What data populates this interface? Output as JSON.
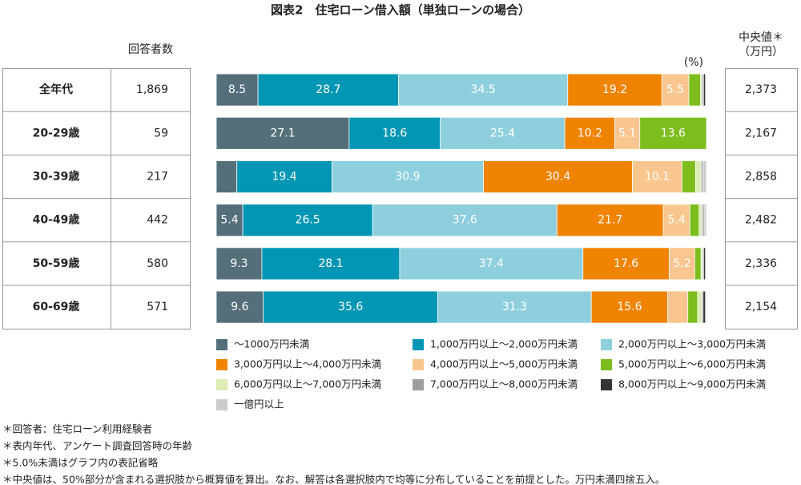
{
  "chart_data": {
    "type": "bar",
    "orientation": "horizontal",
    "stacked": true,
    "title": "図表2　住宅ローン借入額（単独ローンの場合）",
    "unit": "(%)",
    "respondents_header": "回答者数",
    "median_header": [
      "中央値＊",
      "（万円）"
    ],
    "categories": [
      "全年代",
      "20-29歳",
      "30-39歳",
      "40-49歳",
      "50-59歳",
      "60-69歳"
    ],
    "respondents": [
      "1,869",
      "59",
      "217",
      "442",
      "580",
      "571"
    ],
    "medians": [
      "2,373",
      "2,167",
      "2,858",
      "2,482",
      "2,336",
      "2,154"
    ],
    "xlim": [
      0,
      100
    ],
    "series": [
      {
        "name": "～1000万円未満",
        "color": "#546e7a",
        "values": [
          8.5,
          27.1,
          4.2,
          5.4,
          9.3,
          9.6
        ],
        "value_labels": [
          "8.5",
          "27.1",
          null,
          "5.4",
          "9.3",
          "9.6"
        ]
      },
      {
        "name": "1,000万円以上～2,000万円未満",
        "color": "#0096b4",
        "values": [
          28.7,
          18.6,
          19.4,
          26.5,
          28.1,
          35.6
        ],
        "value_labels": [
          "28.7",
          "18.6",
          "19.4",
          "26.5",
          "28.1",
          "35.6"
        ]
      },
      {
        "name": "2,000万円以上～3,000万円未満",
        "color": "#8ecfdd",
        "values": [
          34.5,
          25.4,
          30.9,
          37.6,
          37.4,
          31.3
        ],
        "value_labels": [
          "34.5",
          "25.4",
          "30.9",
          "37.6",
          "37.4",
          "31.3"
        ]
      },
      {
        "name": "3,000万円以上～4,000万円未満",
        "color": "#f08300",
        "values": [
          19.2,
          10.2,
          30.4,
          21.7,
          17.6,
          15.6
        ],
        "value_labels": [
          "19.2",
          "10.2",
          "30.4",
          "21.7",
          "17.6",
          "15.6"
        ]
      },
      {
        "name": "4,000万円以上～5,000万円未満",
        "color": "#f8c68e",
        "values": [
          5.5,
          5.1,
          10.1,
          5.4,
          5.2,
          4.1
        ],
        "value_labels": [
          "5.5",
          "5.1",
          "10.1",
          "5.4",
          "5.2",
          null
        ]
      },
      {
        "name": "5,000万円以上～6,000万円未満",
        "color": "#7dbe1e",
        "values": [
          2.4,
          13.6,
          2.8,
          1.9,
          1.3,
          2.0
        ],
        "value_labels": [
          null,
          "13.6",
          null,
          null,
          null,
          null
        ]
      },
      {
        "name": "6,000万円以上～7,000万円未満",
        "color": "#dcedb4",
        "values": [
          0.3,
          0,
          1.1,
          0.5,
          0.3,
          0.8
        ],
        "value_labels": [
          null,
          null,
          null,
          null,
          null,
          null
        ]
      },
      {
        "name": "7,000万円以上～8,000万円未満",
        "color": "#9e9e9e",
        "values": [
          0.3,
          0,
          0.4,
          0.3,
          0.2,
          0.3
        ],
        "value_labels": [
          null,
          null,
          null,
          null,
          null,
          null
        ]
      },
      {
        "name": "8,000万円以上～9,000万円未満",
        "color": "#333333",
        "values": [
          0.4,
          0,
          0,
          0.2,
          0.4,
          0.5
        ],
        "value_labels": [
          null,
          null,
          null,
          null,
          null,
          null
        ]
      },
      {
        "name": "一億円以上",
        "color": "#cccccc",
        "values": [
          0.2,
          0,
          0.7,
          0.5,
          0.2,
          0.2
        ],
        "value_labels": [
          null,
          null,
          null,
          null,
          null,
          null
        ]
      }
    ],
    "notes": [
      "＊回答者：住宅ローン利用経験者",
      "＊表内年代、アンケート調査回答時の年齢",
      "＊5.0%未満はグラフ内の表記省略",
      "＊中央値は、50%部分が含まれる選択肢から概算値を算出。なお、解答は各選択肢内で均等に分布していることを前提とした。万円未満四捨五入。"
    ]
  }
}
